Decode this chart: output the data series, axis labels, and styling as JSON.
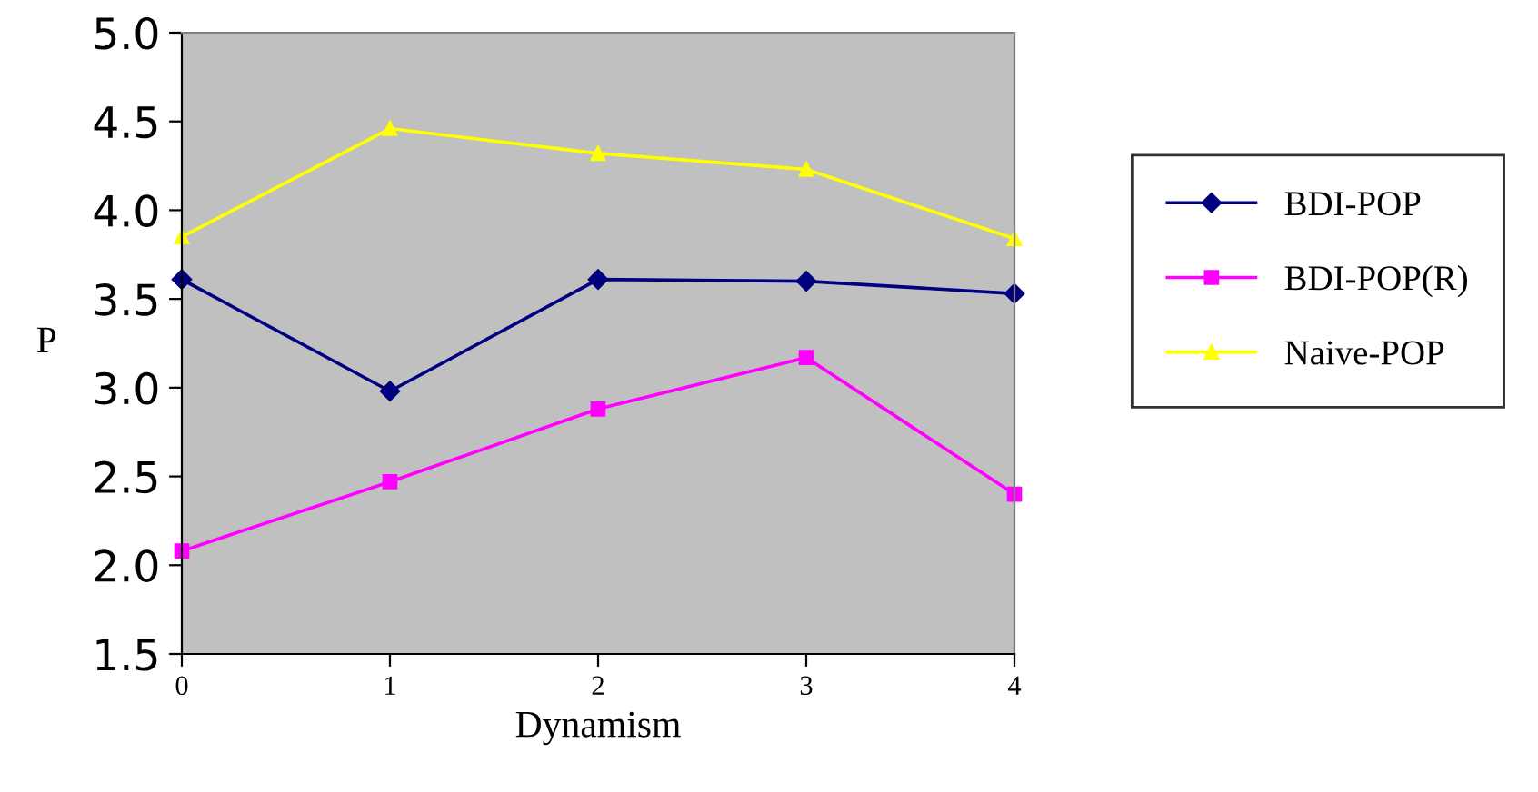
{
  "chart_data": {
    "type": "line",
    "xlabel": "Dynamism",
    "ylabel": "P",
    "x": [
      0,
      1,
      2,
      3,
      4
    ],
    "xlim": [
      0,
      4
    ],
    "xticks": [
      0,
      1,
      2,
      3,
      4
    ],
    "ylim": [
      1.5,
      5.0
    ],
    "yticks": [
      {
        "value": 1.5,
        "label": "1.5"
      },
      {
        "value": 2.0,
        "label": "2.0"
      },
      {
        "value": 2.5,
        "label": "2.5"
      },
      {
        "value": 3.0,
        "label": "3.0"
      },
      {
        "value": 3.5,
        "label": "3.5"
      },
      {
        "value": 4.0,
        "label": "4.0"
      },
      {
        "value": 4.5,
        "label": "4.5"
      },
      {
        "value": 5.0,
        "label": "5.0"
      }
    ],
    "grid": false,
    "legend": "right",
    "line_style": "solid",
    "series": [
      {
        "name": "BDI-POP",
        "color": "#000080",
        "marker": "diamond",
        "values": [
          3.61,
          2.98,
          3.61,
          3.6,
          3.53
        ]
      },
      {
        "name": "BDI-POP(R)",
        "color": "#ff00ff",
        "marker": "square",
        "values": [
          2.08,
          2.47,
          2.88,
          3.17,
          2.4
        ]
      },
      {
        "name": "Naive-POP",
        "color": "#ffff00",
        "marker": "triangle",
        "values": [
          3.85,
          4.46,
          4.32,
          4.23,
          3.84
        ]
      }
    ]
  }
}
